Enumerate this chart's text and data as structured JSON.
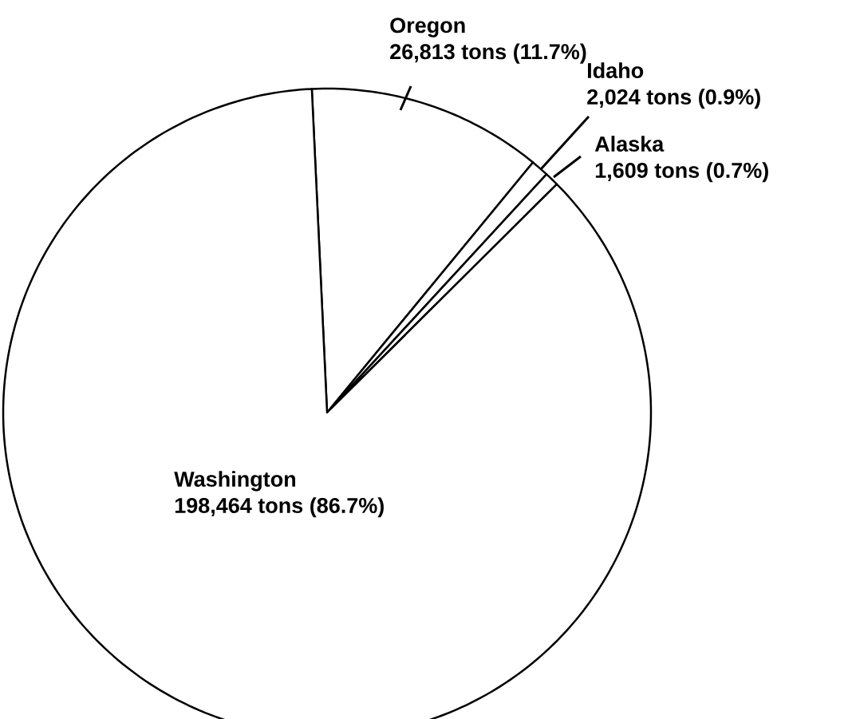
{
  "chart_data": {
    "type": "pie",
    "categories": [
      "Oregon",
      "Idaho",
      "Alaska",
      "Washington"
    ],
    "values": [
      26813,
      2024,
      1609,
      198464
    ],
    "value_labels": [
      "26,813 tons (11.7%)",
      "2,024 tons (0.9%)",
      "1,609 tons (0.7%)",
      "198,464 tons (86.7%)"
    ],
    "colors": [
      "#ffffff",
      "#ffffff",
      "#ffffff",
      "#ffffff"
    ]
  }
}
